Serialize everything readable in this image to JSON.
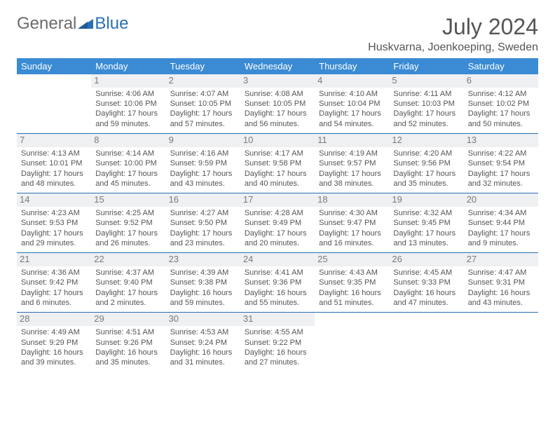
{
  "logo": {
    "part1": "General",
    "part2": "Blue"
  },
  "title": "July 2024",
  "location": "Huskvarna, Joenkoeping, Sweden",
  "header_color": "#3b8bd4",
  "border_color": "#2a6fb5",
  "daynum_bg": "#eef0f2",
  "weekdays": [
    "Sunday",
    "Monday",
    "Tuesday",
    "Wednesday",
    "Thursday",
    "Friday",
    "Saturday"
  ],
  "weeks": [
    [
      null,
      {
        "n": "1",
        "sr": "Sunrise: 4:06 AM",
        "ss": "Sunset: 10:06 PM",
        "dl": "Daylight: 17 hours and 59 minutes."
      },
      {
        "n": "2",
        "sr": "Sunrise: 4:07 AM",
        "ss": "Sunset: 10:05 PM",
        "dl": "Daylight: 17 hours and 57 minutes."
      },
      {
        "n": "3",
        "sr": "Sunrise: 4:08 AM",
        "ss": "Sunset: 10:05 PM",
        "dl": "Daylight: 17 hours and 56 minutes."
      },
      {
        "n": "4",
        "sr": "Sunrise: 4:10 AM",
        "ss": "Sunset: 10:04 PM",
        "dl": "Daylight: 17 hours and 54 minutes."
      },
      {
        "n": "5",
        "sr": "Sunrise: 4:11 AM",
        "ss": "Sunset: 10:03 PM",
        "dl": "Daylight: 17 hours and 52 minutes."
      },
      {
        "n": "6",
        "sr": "Sunrise: 4:12 AM",
        "ss": "Sunset: 10:02 PM",
        "dl": "Daylight: 17 hours and 50 minutes."
      }
    ],
    [
      {
        "n": "7",
        "sr": "Sunrise: 4:13 AM",
        "ss": "Sunset: 10:01 PM",
        "dl": "Daylight: 17 hours and 48 minutes."
      },
      {
        "n": "8",
        "sr": "Sunrise: 4:14 AM",
        "ss": "Sunset: 10:00 PM",
        "dl": "Daylight: 17 hours and 45 minutes."
      },
      {
        "n": "9",
        "sr": "Sunrise: 4:16 AM",
        "ss": "Sunset: 9:59 PM",
        "dl": "Daylight: 17 hours and 43 minutes."
      },
      {
        "n": "10",
        "sr": "Sunrise: 4:17 AM",
        "ss": "Sunset: 9:58 PM",
        "dl": "Daylight: 17 hours and 40 minutes."
      },
      {
        "n": "11",
        "sr": "Sunrise: 4:19 AM",
        "ss": "Sunset: 9:57 PM",
        "dl": "Daylight: 17 hours and 38 minutes."
      },
      {
        "n": "12",
        "sr": "Sunrise: 4:20 AM",
        "ss": "Sunset: 9:56 PM",
        "dl": "Daylight: 17 hours and 35 minutes."
      },
      {
        "n": "13",
        "sr": "Sunrise: 4:22 AM",
        "ss": "Sunset: 9:54 PM",
        "dl": "Daylight: 17 hours and 32 minutes."
      }
    ],
    [
      {
        "n": "14",
        "sr": "Sunrise: 4:23 AM",
        "ss": "Sunset: 9:53 PM",
        "dl": "Daylight: 17 hours and 29 minutes."
      },
      {
        "n": "15",
        "sr": "Sunrise: 4:25 AM",
        "ss": "Sunset: 9:52 PM",
        "dl": "Daylight: 17 hours and 26 minutes."
      },
      {
        "n": "16",
        "sr": "Sunrise: 4:27 AM",
        "ss": "Sunset: 9:50 PM",
        "dl": "Daylight: 17 hours and 23 minutes."
      },
      {
        "n": "17",
        "sr": "Sunrise: 4:28 AM",
        "ss": "Sunset: 9:49 PM",
        "dl": "Daylight: 17 hours and 20 minutes."
      },
      {
        "n": "18",
        "sr": "Sunrise: 4:30 AM",
        "ss": "Sunset: 9:47 PM",
        "dl": "Daylight: 17 hours and 16 minutes."
      },
      {
        "n": "19",
        "sr": "Sunrise: 4:32 AM",
        "ss": "Sunset: 9:45 PM",
        "dl": "Daylight: 17 hours and 13 minutes."
      },
      {
        "n": "20",
        "sr": "Sunrise: 4:34 AM",
        "ss": "Sunset: 9:44 PM",
        "dl": "Daylight: 17 hours and 9 minutes."
      }
    ],
    [
      {
        "n": "21",
        "sr": "Sunrise: 4:36 AM",
        "ss": "Sunset: 9:42 PM",
        "dl": "Daylight: 17 hours and 6 minutes."
      },
      {
        "n": "22",
        "sr": "Sunrise: 4:37 AM",
        "ss": "Sunset: 9:40 PM",
        "dl": "Daylight: 17 hours and 2 minutes."
      },
      {
        "n": "23",
        "sr": "Sunrise: 4:39 AM",
        "ss": "Sunset: 9:38 PM",
        "dl": "Daylight: 16 hours and 59 minutes."
      },
      {
        "n": "24",
        "sr": "Sunrise: 4:41 AM",
        "ss": "Sunset: 9:36 PM",
        "dl": "Daylight: 16 hours and 55 minutes."
      },
      {
        "n": "25",
        "sr": "Sunrise: 4:43 AM",
        "ss": "Sunset: 9:35 PM",
        "dl": "Daylight: 16 hours and 51 minutes."
      },
      {
        "n": "26",
        "sr": "Sunrise: 4:45 AM",
        "ss": "Sunset: 9:33 PM",
        "dl": "Daylight: 16 hours and 47 minutes."
      },
      {
        "n": "27",
        "sr": "Sunrise: 4:47 AM",
        "ss": "Sunset: 9:31 PM",
        "dl": "Daylight: 16 hours and 43 minutes."
      }
    ],
    [
      {
        "n": "28",
        "sr": "Sunrise: 4:49 AM",
        "ss": "Sunset: 9:29 PM",
        "dl": "Daylight: 16 hours and 39 minutes."
      },
      {
        "n": "29",
        "sr": "Sunrise: 4:51 AM",
        "ss": "Sunset: 9:26 PM",
        "dl": "Daylight: 16 hours and 35 minutes."
      },
      {
        "n": "30",
        "sr": "Sunrise: 4:53 AM",
        "ss": "Sunset: 9:24 PM",
        "dl": "Daylight: 16 hours and 31 minutes."
      },
      {
        "n": "31",
        "sr": "Sunrise: 4:55 AM",
        "ss": "Sunset: 9:22 PM",
        "dl": "Daylight: 16 hours and 27 minutes."
      },
      null,
      null,
      null
    ]
  ]
}
